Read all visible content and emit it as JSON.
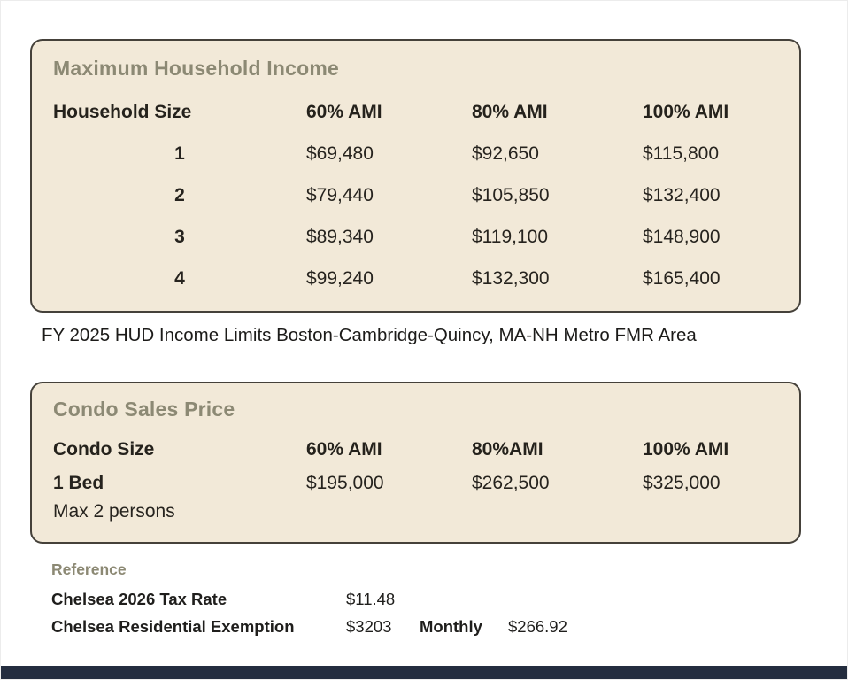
{
  "colors": {
    "page_background": "#ffffff",
    "panel_fill": "#f2e9d8",
    "panel_border": "#45413a",
    "title_olive": "#8c8974",
    "text_dark": "#26231e",
    "footer_navy": "#242d3f"
  },
  "income_table": {
    "title": "Maximum Household Income",
    "columns": [
      "Household Size",
      "60% AMI",
      "80% AMI",
      "100% AMI"
    ],
    "rows": [
      {
        "size": "1",
        "ami60": "$69,480",
        "ami80": "$92,650",
        "ami100": "$115,800"
      },
      {
        "size": "2",
        "ami60": "$79,440",
        "ami80": "$105,850",
        "ami100": "$132,400"
      },
      {
        "size": "3",
        "ami60": "$89,340",
        "ami80": "$119,100",
        "ami100": "$148,900"
      },
      {
        "size": "4",
        "ami60": "$99,240",
        "ami80": "$132,300",
        "ami100": "$165,400"
      }
    ]
  },
  "caption": "FY 2025 HUD Income Limits Boston-Cambridge-Quincy, MA-NH Metro FMR Area",
  "condo_table": {
    "title": "Condo Sales Price",
    "columns": [
      "Condo Size",
      "60% AMI",
      "80%AMI",
      "100% AMI"
    ],
    "rows": [
      {
        "size": "1 Bed",
        "note": "Max 2 persons",
        "ami60": "$195,000",
        "ami80": "$262,500",
        "ami100": "$325,000"
      }
    ]
  },
  "reference": {
    "heading": "Reference",
    "rows": [
      {
        "label": "Chelsea 2026 Tax Rate",
        "value": "$11.48",
        "extra_label": "",
        "extra_value": ""
      },
      {
        "label": "Chelsea Residential Exemption",
        "value": "$3203",
        "extra_label": "Monthly",
        "extra_value": "$266.92"
      }
    ]
  }
}
